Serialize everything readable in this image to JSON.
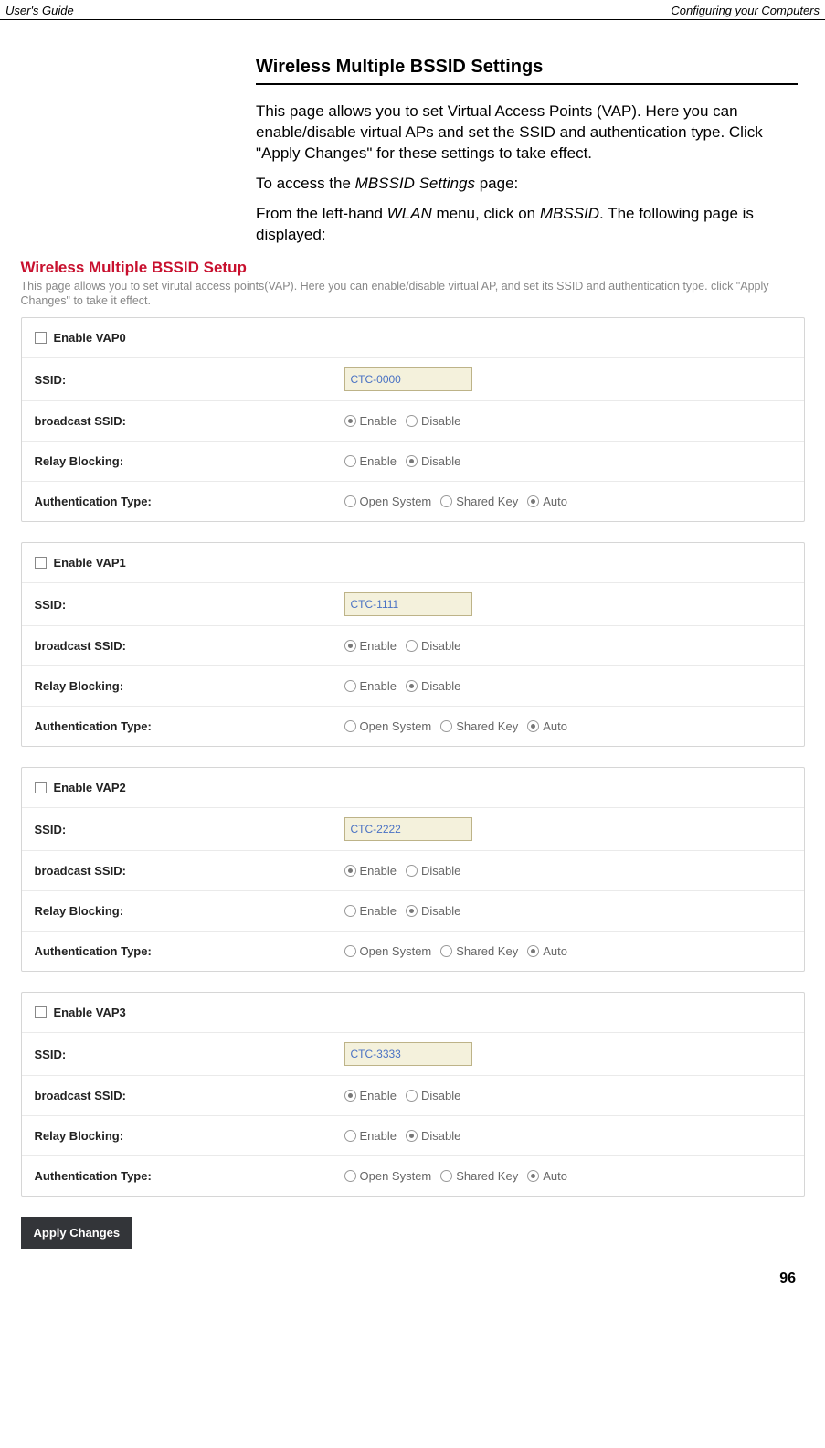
{
  "header": {
    "left": "User's Guide",
    "right": "Configuring your Computers"
  },
  "intro": {
    "title": "Wireless Multiple BSSID Settings",
    "p1": "This page allows you to set Virtual Access Points (VAP). Here you can enable/disable virtual APs and set the SSID and authentication type. Click \"Apply Changes\" for these settings to take effect.",
    "p2_a": "To access the ",
    "p2_i": "MBSSID Settings",
    "p2_b": " page:",
    "p3_a": "From the left-hand ",
    "p3_i1": "WLAN",
    "p3_b": " menu, click on ",
    "p3_i2": "MBSSID",
    "p3_c": ". The following page is displayed:"
  },
  "screenshot": {
    "title": "Wireless Multiple BSSID Setup",
    "desc": "This page allows you to set virutal access points(VAP). Here you can enable/disable virtual AP, and set its SSID and authentication type. click \"Apply Changes\" to take it effect.",
    "labels": {
      "ssid": "SSID:",
      "broadcast": "broadcast SSID:",
      "relay": "Relay Blocking:",
      "auth": "Authentication Type:",
      "enable": "Enable",
      "disable": "Disable",
      "open": "Open System",
      "shared": "Shared Key",
      "auto": "Auto"
    },
    "vaps": [
      {
        "enable_label": "Enable VAP0",
        "ssid": "CTC-0000"
      },
      {
        "enable_label": "Enable VAP1",
        "ssid": "CTC-1111"
      },
      {
        "enable_label": "Enable VAP2",
        "ssid": "CTC-2222"
      },
      {
        "enable_label": "Enable VAP3",
        "ssid": "CTC-3333"
      }
    ],
    "apply": "Apply Changes"
  },
  "page_number": "96"
}
